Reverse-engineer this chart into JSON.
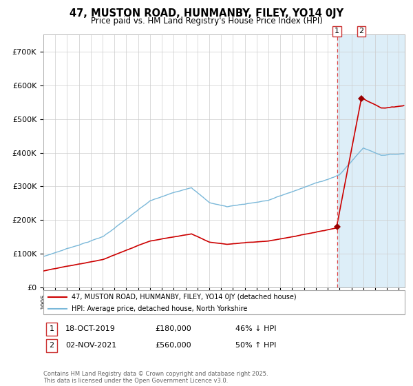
{
  "title": "47, MUSTON ROAD, HUNMANBY, FILEY, YO14 0JY",
  "subtitle": "Price paid vs. HM Land Registry's House Price Index (HPI)",
  "legend_line1": "47, MUSTON ROAD, HUNMANBY, FILEY, YO14 0JY (detached house)",
  "legend_line2": "HPI: Average price, detached house, North Yorkshire",
  "footnote": "Contains HM Land Registry data © Crown copyright and database right 2025.\nThis data is licensed under the Open Government Licence v3.0.",
  "transaction1_label": "1",
  "transaction1_date": "18-OCT-2019",
  "transaction1_price": "£180,000",
  "transaction1_hpi": "46% ↓ HPI",
  "transaction2_label": "2",
  "transaction2_date": "02-NOV-2021",
  "transaction2_price": "£560,000",
  "transaction2_hpi": "50% ↑ HPI",
  "hpi_color": "#7ab8d9",
  "price_color": "#cc0000",
  "marker_color": "#990000",
  "background_color": "#ffffff",
  "highlight_color": "#ddeef8",
  "dashed_line_color": "#dd4444",
  "ylim": [
    0,
    750000
  ],
  "yticks": [
    0,
    100000,
    200000,
    300000,
    400000,
    500000,
    600000,
    700000
  ],
  "xlim_start": 1995.0,
  "xlim_end": 2025.5,
  "transaction1_x": 2019.79,
  "transaction2_x": 2021.84,
  "highlight_start": 2019.79,
  "highlight_end": 2025.5
}
